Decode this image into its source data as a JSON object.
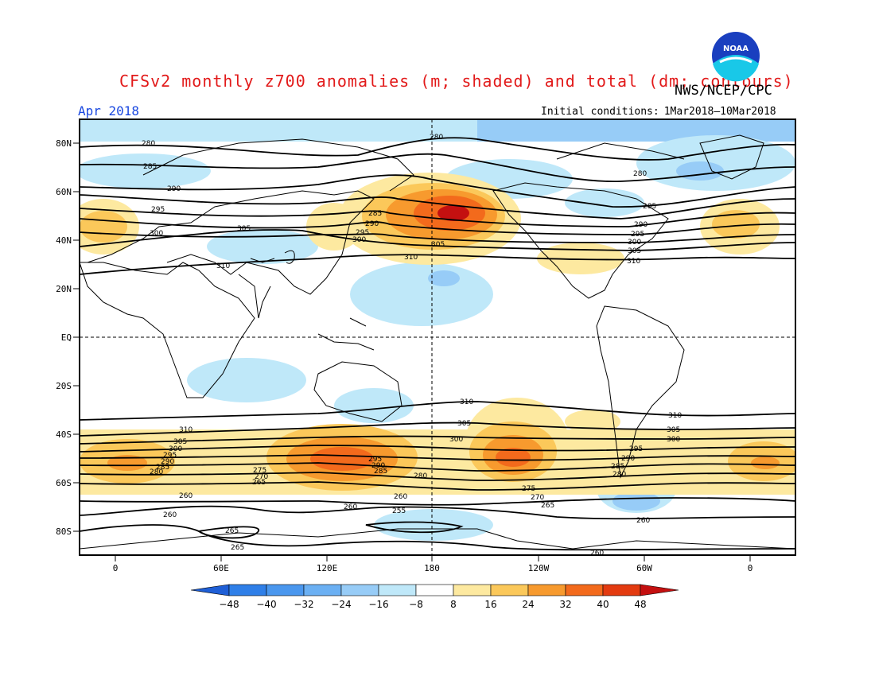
{
  "title": "CFSv2 monthly z700 anomalies (m; shaded) and total (dm; contours)",
  "agency": "NWS/NCEP/CPC",
  "period": "Apr 2018",
  "initial_conditions": {
    "label": "Initial conditions:",
    "value": "1Mar2018–10Mar2018"
  },
  "logo_text": "NOAA",
  "lat_labels": [
    "80N",
    "60N",
    "40N",
    "20N",
    "EQ",
    "20S",
    "40S",
    "60S",
    "80S"
  ],
  "lon_labels": [
    "0",
    "60E",
    "120E",
    "180",
    "120W",
    "60W",
    "0"
  ],
  "colorbar": {
    "ticks": [
      "−48",
      "−40",
      "−32",
      "−24",
      "−16",
      "−8",
      "8",
      "16",
      "24",
      "32",
      "40",
      "48"
    ],
    "colors": [
      "#1f5fd6",
      "#2f7fe8",
      "#4a97ee",
      "#6bb0f3",
      "#97ccf7",
      "#bfe8f9",
      "#ffffff",
      "#fde9a0",
      "#fbc85a",
      "#f79a2e",
      "#f36a1c",
      "#e33b10",
      "#c41010"
    ]
  },
  "contour_labels": [
    "280",
    "285",
    "290",
    "295",
    "300",
    "305",
    "310",
    "260",
    "255",
    "265",
    "270",
    "275"
  ],
  "colors": {
    "title": "#e21a1a",
    "period": "#1a48e0",
    "positive": "#f36a1c",
    "negative": "#97ccf7"
  }
}
